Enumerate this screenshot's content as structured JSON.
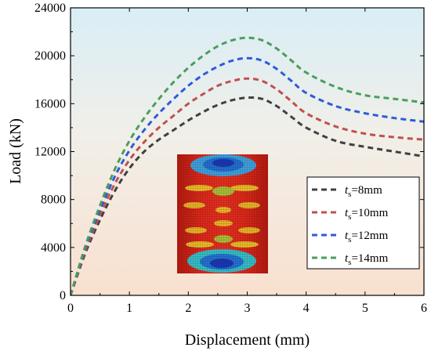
{
  "chart_data": {
    "type": "line",
    "xlabel": "Displacement (mm)",
    "ylabel": "Load (kN)",
    "xlim": [
      0,
      6
    ],
    "ylim": [
      0,
      24000
    ],
    "xticks": [
      0,
      1,
      2,
      3,
      4,
      5,
      6
    ],
    "yticks": [
      0,
      4000,
      8000,
      12000,
      16000,
      20000,
      24000
    ],
    "grid": false,
    "legend_position": "lower-right",
    "background": "vertical gradient from light blue (top) to light peach (bottom)",
    "inset": "contour plot of a deformed steel tube (red with blue and yellow regions)",
    "series": [
      {
        "label_main": "t",
        "label_sub": "s",
        "label_rest": "=8mm",
        "color": "#404040",
        "dash": "dashed",
        "x": [
          0,
          0.25,
          0.5,
          0.75,
          1.0,
          1.25,
          1.5,
          1.75,
          2.0,
          2.25,
          2.5,
          2.75,
          3.0,
          3.25,
          3.5,
          3.75,
          4.0,
          4.5,
          5.0,
          5.5,
          6.0
        ],
        "y": [
          0,
          3500,
          6300,
          8700,
          10600,
          12000,
          13000,
          13800,
          14600,
          15300,
          15900,
          16300,
          16500,
          16400,
          15800,
          14900,
          14000,
          12900,
          12400,
          12000,
          11600
        ]
      },
      {
        "label_main": "t",
        "label_sub": "s",
        "label_rest": "=10mm",
        "color": "#c0504d",
        "dash": "dashed",
        "x": [
          0,
          0.25,
          0.5,
          0.75,
          1.0,
          1.25,
          1.5,
          1.75,
          2.0,
          2.25,
          2.5,
          2.75,
          3.0,
          3.25,
          3.5,
          3.75,
          4.0,
          4.5,
          5.0,
          5.5,
          6.0
        ],
        "y": [
          0,
          3700,
          6700,
          9300,
          11300,
          12800,
          14000,
          15000,
          16000,
          16800,
          17500,
          17900,
          18100,
          17900,
          17200,
          16200,
          15200,
          14100,
          13500,
          13200,
          13000
        ]
      },
      {
        "label_main": "t",
        "label_sub": "s",
        "label_rest": "=12mm",
        "color": "#2e5bd8",
        "dash": "dashed",
        "x": [
          0,
          0.25,
          0.5,
          0.75,
          1.0,
          1.25,
          1.5,
          1.75,
          2.0,
          2.25,
          2.5,
          2.75,
          3.0,
          3.25,
          3.5,
          3.75,
          4.0,
          4.5,
          5.0,
          5.5,
          6.0
        ],
        "y": [
          0,
          3900,
          7100,
          9900,
          12100,
          13800,
          15200,
          16400,
          17500,
          18400,
          19100,
          19600,
          19800,
          19600,
          18900,
          17900,
          16900,
          15800,
          15200,
          14800,
          14500
        ]
      },
      {
        "label_main": "t",
        "label_sub": "s",
        "label_rest": "=14mm",
        "color": "#4a9e5c",
        "dash": "dashed",
        "x": [
          0,
          0.25,
          0.5,
          0.75,
          1.0,
          1.25,
          1.5,
          1.75,
          2.0,
          2.25,
          2.5,
          2.75,
          3.0,
          3.25,
          3.5,
          3.75,
          4.0,
          4.5,
          5.0,
          5.5,
          6.0
        ],
        "y": [
          0,
          4100,
          7500,
          10500,
          12900,
          14800,
          16400,
          17800,
          19000,
          20000,
          20800,
          21300,
          21500,
          21300,
          20600,
          19600,
          18600,
          17400,
          16700,
          16400,
          16100
        ]
      }
    ]
  }
}
